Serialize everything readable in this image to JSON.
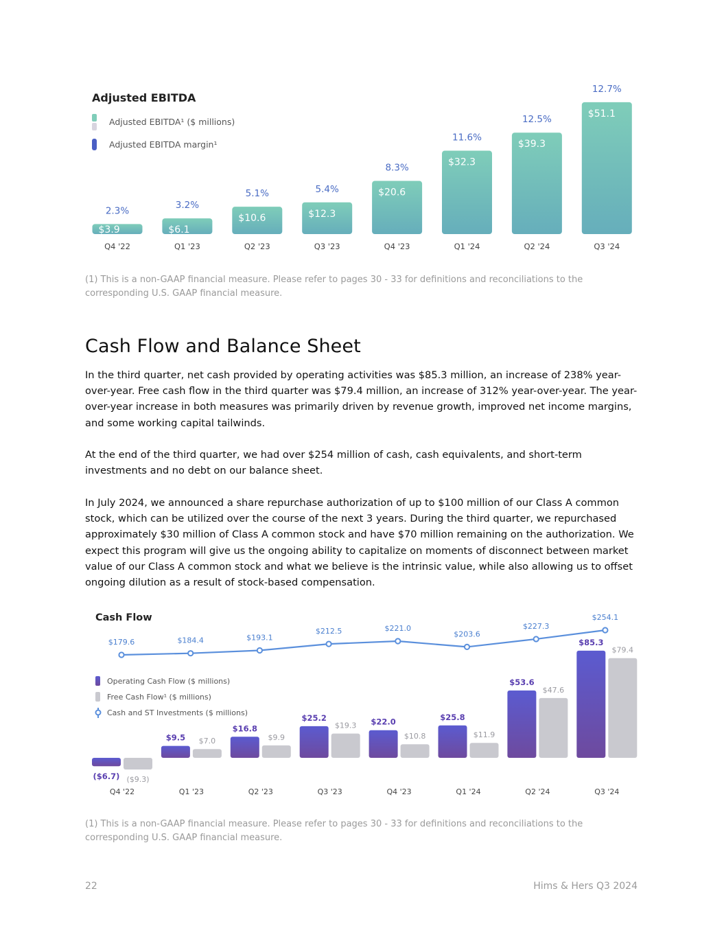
{
  "ebitda_chart": {
    "chart_data": {
      "type": "bar",
      "title": "Adjusted EBITDA",
      "categories": [
        "Q4 '22",
        "Q1 '23",
        "Q2 '23",
        "Q3 '23",
        "Q4 '23",
        "Q1 '24",
        "Q2 '24",
        "Q3 '24"
      ],
      "series": [
        {
          "name": "Adjusted EBITDA¹ ($ millions)",
          "values": [
            3.9,
            6.1,
            10.6,
            12.3,
            20.6,
            32.3,
            39.3,
            51.1
          ],
          "labels": [
            "$3.9",
            "$6.1",
            "$10.6",
            "$12.3",
            "$20.6",
            "$32.3",
            "$39.3",
            "$51.1"
          ]
        },
        {
          "name": "Adjusted EBITDA margin¹",
          "values": [
            2.3,
            3.2,
            5.1,
            5.4,
            8.3,
            11.6,
            12.5,
            12.7
          ],
          "labels": [
            "2.3%",
            "3.2%",
            "5.1%",
            "5.4%",
            "8.3%",
            "11.6%",
            "12.5%",
            "12.7%"
          ]
        }
      ],
      "legend": [
        "Adjusted EBITDA¹ ($ millions)",
        "Adjusted EBITDA margin¹"
      ],
      "legend_placement": "top-left",
      "ylim": [
        0,
        55
      ],
      "grid": false
    },
    "colors": {
      "bar_top": "#7fcdb9",
      "bar_bottom": "#66aebb",
      "margin_text": "#4a6cc4"
    },
    "footnote": "(1) This is a non-GAAP financial measure. Please refer to pages 30 - 33 for definitions and reconciliations to the corresponding U.S. GAAP financial measure."
  },
  "section": {
    "heading": "Cash Flow and Balance Sheet",
    "paragraphs": [
      "In the third quarter, net cash provided by operating activities was $85.3 million, an increase of 238% year-over-year. Free cash flow in the third quarter was $79.4 million, an increase of 312% year-over-year. The year-over-year increase in both measures was primarily driven by revenue growth, improved net income margins, and some working capital tailwinds.",
      "At the end of the third quarter, we had over $254 million of cash, cash equivalents, and short-term investments and no debt on our balance sheet.",
      "In July 2024, we announced a share repurchase authorization of up to $100 million of our Class A common stock, which can be utilized over the course of the next 3 years. During the third quarter, we repurchased approximately $30 million of Class A common stock and have $70 million remaining on the authorization. We expect this program will give us the ongoing ability to capitalize on moments of disconnect between market value of our Class A common stock and what we believe is the intrinsic value, while also allowing us to offset ongoing dilution as a result of stock-based compensation."
    ]
  },
  "cashflow_chart": {
    "chart_data": {
      "type": "bar",
      "title": "Cash Flow",
      "categories": [
        "Q4 '22",
        "Q1 '23",
        "Q2 '23",
        "Q3 '23",
        "Q4 '23",
        "Q1 '24",
        "Q2 '24",
        "Q3 '24"
      ],
      "series": [
        {
          "name": "Operating Cash Flow ($ millions)",
          "type": "bar",
          "values": [
            -6.7,
            9.5,
            16.8,
            25.2,
            22.0,
            25.8,
            53.6,
            85.3
          ],
          "labels": [
            "($6.7)",
            "$9.5",
            "$16.8",
            "$25.2",
            "$22.0",
            "$25.8",
            "$53.6",
            "$85.3"
          ]
        },
        {
          "name": "Free Cash Flow¹ ($ millions)",
          "type": "bar",
          "values": [
            -9.3,
            7.0,
            9.9,
            19.3,
            10.8,
            11.9,
            47.6,
            79.4
          ],
          "labels": [
            "($9.3)",
            "$7.0",
            "$9.9",
            "$19.3",
            "$10.8",
            "$11.9",
            "$47.6",
            "$79.4"
          ]
        },
        {
          "name": "Cash and ST Investments ($ millions)",
          "type": "line",
          "values": [
            179.6,
            184.4,
            193.1,
            212.5,
            221.0,
            203.6,
            227.3,
            254.1
          ],
          "labels": [
            "$179.6",
            "$184.4",
            "$193.1",
            "$212.5",
            "$221.0",
            "$203.6",
            "$227.3",
            "$254.1"
          ]
        }
      ],
      "legend": [
        "Operating Cash Flow ($ millions)",
        "Free Cash Flow¹ ($ millions)",
        "Cash and ST Investments ($ millions)"
      ],
      "legend_placement": "left",
      "grid": false
    },
    "colors": {
      "ocf_top": "#5b5bd0",
      "ocf_bottom": "#6e4a9e",
      "fcf": "#c9c9cf",
      "line": "#5a8fdc",
      "ocf_text": "#5a3fb0",
      "fcf_text": "#9a9aa0"
    },
    "footnote": "(1) This is a non-GAAP financial measure. Please refer to pages 30 - 33 for definitions and reconciliations to the corresponding U.S. GAAP financial measure."
  },
  "footer": {
    "page_number": "22",
    "report_title": "Hims & Hers Q3 2024"
  }
}
